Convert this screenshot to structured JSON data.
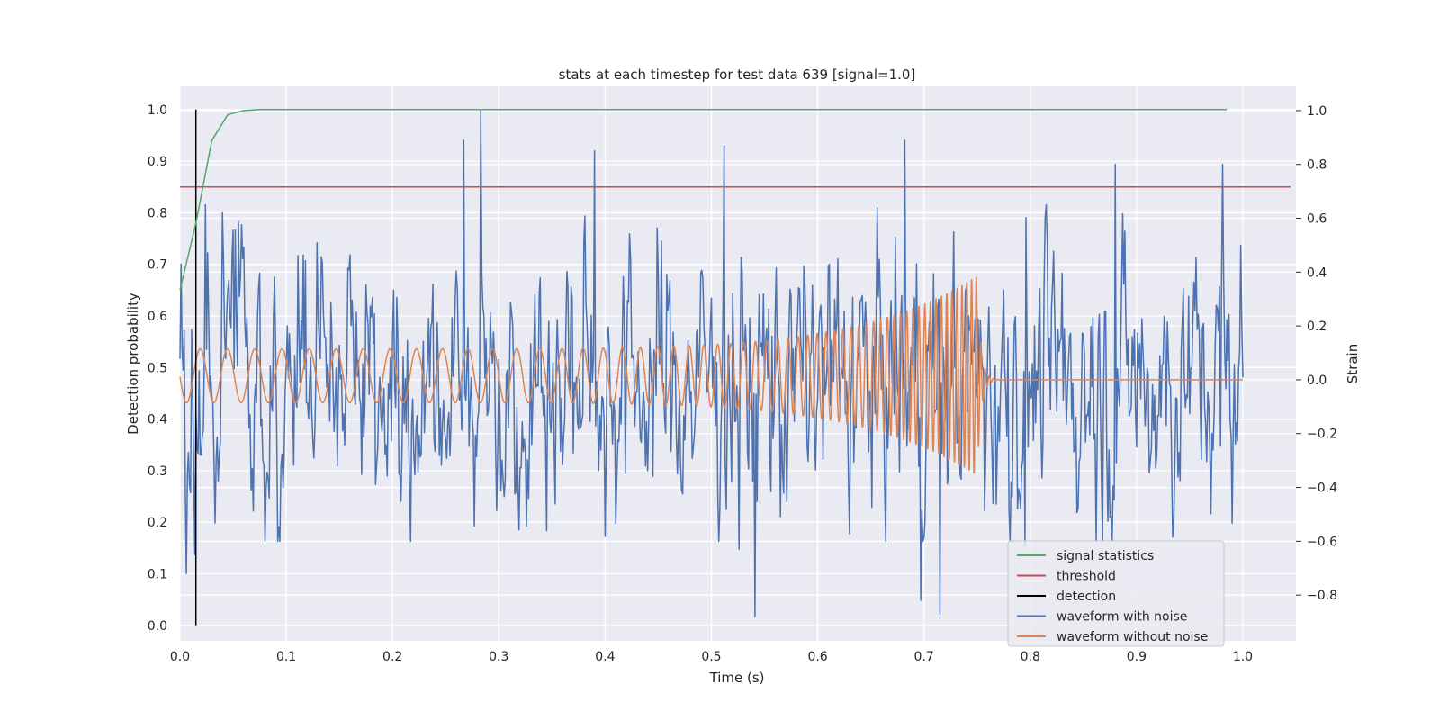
{
  "chart_data": {
    "type": "line",
    "title": "stats at each timestep for test data 639 [signal=1.0]",
    "xlabel": "Time (s)",
    "ylabel": "Detection probability",
    "ylabel_right": "Strain",
    "xlim": [
      0.0,
      1.05
    ],
    "ylim": [
      -0.03,
      1.045
    ],
    "ylim_right": [
      -0.97,
      1.09
    ],
    "xticks": [
      "0.0",
      "0.1",
      "0.2",
      "0.3",
      "0.4",
      "0.5",
      "0.6",
      "0.7",
      "0.8",
      "0.9",
      "1.0"
    ],
    "yticks": [
      "0.0",
      "0.1",
      "0.2",
      "0.3",
      "0.4",
      "0.5",
      "0.6",
      "0.7",
      "0.8",
      "0.9",
      "1.0"
    ],
    "yticks_right": [
      "−0.8",
      "−0.6",
      "−0.4",
      "−0.2",
      "0.0",
      "0.2",
      "0.4",
      "0.6",
      "0.8",
      "1.0"
    ],
    "grid": true,
    "legend_position": "lower-right",
    "colors": {
      "signal_statistics": "#55a868",
      "threshold": "#c44e52",
      "detection": "#000000",
      "waveform_with_noise": "#4c72b0",
      "waveform_without_noise": "#dd8452",
      "plot_background": "#eaeaf2"
    },
    "series": [
      {
        "name": "signal statistics",
        "axis": "left",
        "x": [
          0.0,
          0.015,
          0.03,
          0.045,
          0.06,
          0.075,
          0.09,
          0.12,
          0.2,
          0.4,
          0.6,
          0.8,
          0.985
        ],
        "y": [
          0.65,
          0.78,
          0.94,
          0.99,
          0.998,
          1.0,
          1.0,
          1.0,
          1.0,
          1.0,
          1.0,
          1.0,
          1.0
        ]
      },
      {
        "name": "threshold",
        "axis": "left",
        "x": [
          0.0,
          1.045
        ],
        "y": [
          0.85,
          0.85
        ]
      },
      {
        "name": "detection",
        "axis": "left",
        "x": [
          0.015,
          0.015
        ],
        "y": [
          0.0,
          1.0
        ]
      },
      {
        "name": "waveform with noise",
        "axis": "right",
        "x_range": [
          0.0,
          1.0
        ],
        "n_points": 1000,
        "amplitude": 0.22,
        "peaks": [
          {
            "x": 0.283,
            "y": 1.0
          },
          {
            "x": 0.267,
            "y": 0.89
          },
          {
            "x": 0.39,
            "y": 0.85
          },
          {
            "x": 0.512,
            "y": 0.87
          },
          {
            "x": 0.682,
            "y": 0.89
          },
          {
            "x": 0.88,
            "y": 0.8
          },
          {
            "x": 0.981,
            "y": 0.8
          },
          {
            "x": 0.541,
            "y": -0.88
          },
          {
            "x": 0.715,
            "y": -0.87
          },
          {
            "x": 0.697,
            "y": -0.82
          },
          {
            "x": 0.006,
            "y": -0.72
          },
          {
            "x": 0.014,
            "y": -0.65
          },
          {
            "x": 0.795,
            "y": -0.62
          },
          {
            "x": 0.526,
            "y": -0.63
          }
        ]
      },
      {
        "name": "waveform without noise",
        "axis": "right",
        "x_range": [
          0.0,
          1.0
        ],
        "merger_time": 0.75,
        "amplitude_start": 0.1,
        "amplitude_peak": 0.37,
        "frequency_start": 39,
        "frequency_end": 230
      }
    ]
  },
  "legend": {
    "items": [
      {
        "label": "signal statistics",
        "color": "#55a868"
      },
      {
        "label": "threshold",
        "color": "#c44e52"
      },
      {
        "label": "detection",
        "color": "#000000"
      },
      {
        "label": "waveform with noise",
        "color": "#4c72b0"
      },
      {
        "label": "waveform without noise",
        "color": "#dd8452"
      }
    ]
  }
}
